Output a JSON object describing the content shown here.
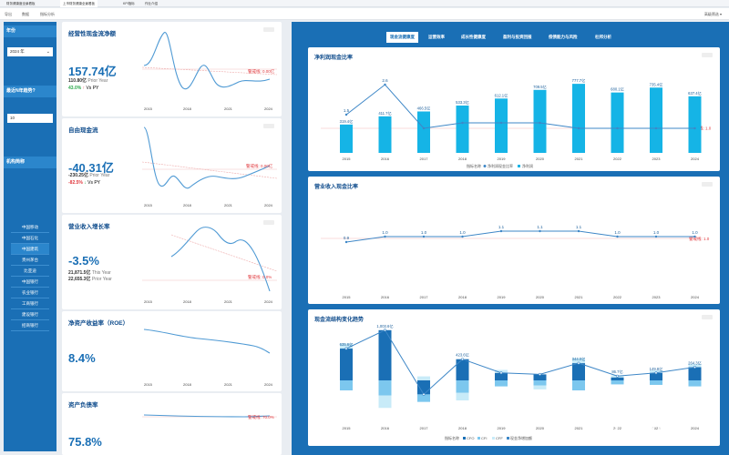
{
  "topbar": {
    "tabs": [
      "财务健康度全景看板",
      "上市财务健康全景看板",
      "KPI指标",
      "作业介绍"
    ],
    "active_tab": 1
  },
  "toolbar": {
    "items": [
      "导出",
      "数据",
      "指标分析"
    ],
    "right": "高级筛选 ▾"
  },
  "sidebar": {
    "year_head": "年份",
    "year_value": "2024 年",
    "n_year_head": "最近N年趋势?",
    "n_year_value": "10",
    "org_head": "机构简称",
    "orgs": [
      "中国移动",
      "中国石化",
      "中国建筑",
      "贵州茅台",
      "比亚迪",
      "中国银行",
      "农业银行",
      "工商银行",
      "建设银行",
      "招商银行"
    ]
  },
  "colors": {
    "accent": "#1a6fb5",
    "warn": "#e0393e",
    "positive": "#2aa84a",
    "bar": "#15b4e6"
  },
  "kpis": [
    {
      "title": "经营性现金流净额",
      "value": "157.74亿",
      "sub_value": "110.80亿",
      "sub_label": "Prior Year",
      "change": "43.0%",
      "change_dir": "up",
      "change_label": "Vs PY",
      "warn_label": "警戒线: 0.00亿",
      "years": [
        "2015",
        "2018",
        "2021",
        "2024"
      ]
    },
    {
      "title": "自由现金流",
      "value": "-40.31亿",
      "sub_value": "-230.25亿",
      "sub_label": "Prior Year",
      "change": "-82.5%",
      "change_dir": "down",
      "change_label": "Vs PY",
      "warn_label": "警戒线: 0.00亿",
      "years": [
        "2015",
        "2018",
        "2021",
        "2024"
      ]
    },
    {
      "title": "营业收入增长率",
      "value": "-3.5%",
      "sub_value": "21,871.5亿",
      "sub_label": "This Year",
      "sub_value2": "22,655.3亿",
      "sub_label2": "Prior Year",
      "warn_label": "警戒线: 0.0%",
      "years": [
        "2015",
        "2018",
        "2021",
        "2024"
      ]
    },
    {
      "title": "净资产收益率（ROE）",
      "value": "8.4%",
      "years": [
        "2015",
        "2018",
        "2021",
        "2024"
      ]
    },
    {
      "title": "资产负债率",
      "value": "75.8%",
      "warn_label": "警戒线: 70.0%"
    }
  ],
  "tabs": [
    "现金流健康度",
    "运营效率",
    "成长性健康度",
    "盈利与投资回报",
    "偿债能力与风险",
    "杜邦分析"
  ],
  "active_tab": 0,
  "chart_data": [
    {
      "type": "bar",
      "title": "净利润现金比率",
      "categories": [
        "2015",
        "2016",
        "2017",
        "2018",
        "2019",
        "2020",
        "2021",
        "2022",
        "2023",
        "2024"
      ],
      "series": [
        {
          "name": "净利润",
          "values": [
            319.4,
            411.7,
            466.5,
            533.3,
            612.1,
            709.5,
            777.7,
            680.1,
            735.4,
            637.4
          ]
        },
        {
          "name": "净利润现金比率",
          "values": [
            1.5,
            2.6,
            1.0,
            1.2,
            1.2,
            1.2,
            1.0,
            1.0,
            1.0,
            1.0
          ]
        }
      ],
      "bar_labels": [
        "319.4亿",
        "411.7亿",
        "466.5亿",
        "533.3亿",
        "612.1亿",
        "709.5亿",
        "777.7亿",
        "680.1亿",
        "735.4亿",
        "637.4亿"
      ],
      "line_labels": [
        "1.5",
        "2.6",
        "",
        "",
        "",
        "",
        "",
        "",
        "",
        ""
      ],
      "warn_label": "警戒线: 1.0",
      "legend_title": "指标名称",
      "legend": [
        "净利润现金比率",
        "净利润"
      ]
    },
    {
      "type": "line",
      "title": "营业收入现金比率",
      "categories": [
        "2015",
        "2016",
        "2017",
        "2018",
        "2019",
        "2020",
        "2021",
        "2022",
        "2023",
        "2024"
      ],
      "values": [
        0.9,
        1.0,
        1.0,
        1.0,
        1.1,
        1.1,
        1.1,
        1.0,
        1.0,
        1.0
      ],
      "labels": [
        "0.9",
        "1.0",
        "1.0",
        "1.0",
        "1.1",
        "1.1",
        "1.1",
        "1.0",
        "1.0",
        "1.0"
      ],
      "warn_label": "警戒线: 1.0"
    },
    {
      "type": "bar",
      "title": "现金流结构变化趋势",
      "categories": [
        "2015",
        "2016",
        "2017",
        "2018",
        "2019",
        "2020",
        "2021",
        "2022",
        "2023",
        "2024"
      ],
      "series": [
        {
          "name": "CFO",
          "values": [
            635.6,
            1003.6,
            -280,
            423.6,
            150,
            120,
            344.0,
            60,
            149.8,
            264.3
          ]
        },
        {
          "name": "CFI",
          "values": [
            -200,
            -300,
            -150,
            -250,
            -120,
            -100,
            -200,
            -80,
            -90,
            -120
          ]
        },
        {
          "name": "CFF",
          "values": [
            100,
            -250,
            80,
            -150,
            60,
            -80,
            100,
            40,
            50,
            60
          ]
        },
        {
          "name": "现金净增加额",
          "values": [
            635.6,
            1003.6,
            -280,
            423.6,
            150,
            120,
            344.0,
            86.7,
            149.8,
            264.3
          ]
        }
      ],
      "labels": [
        "635.6亿",
        "1,003.6亿",
        "",
        "423.6亿",
        "",
        "",
        "344.0亿",
        "86.7亿",
        "149.8亿",
        "264.3亿"
      ],
      "legend_title": "指标名称",
      "legend": [
        "CFO",
        "CFI",
        "CFF",
        "现金净增加额"
      ]
    }
  ],
  "watermark": "知乎 @帆软"
}
